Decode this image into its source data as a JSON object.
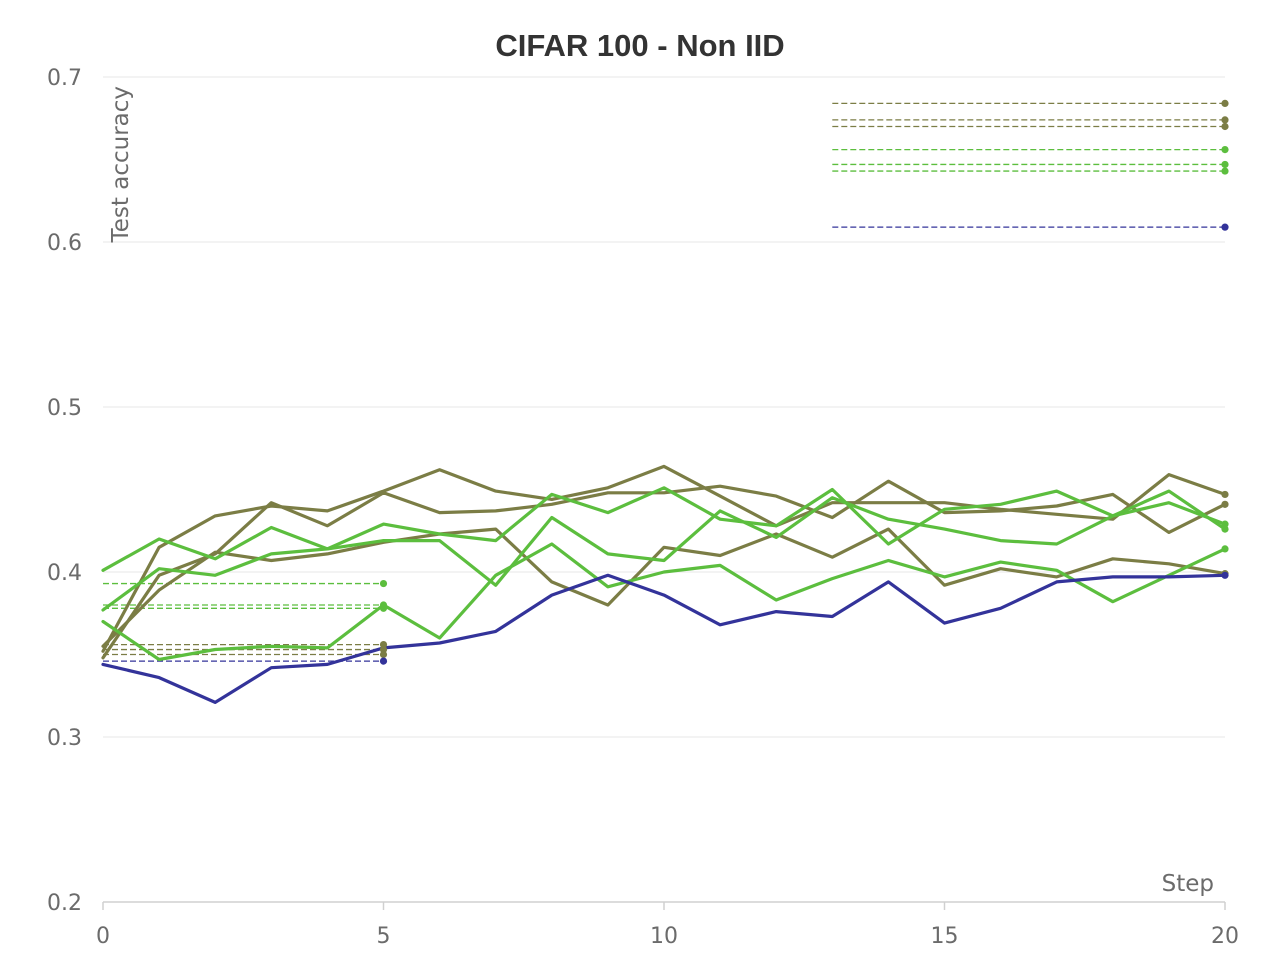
{
  "chart_data": {
    "type": "line",
    "title": "CIFAR 100 - Non IID",
    "xlabel": "Step",
    "ylabel": "Test accuracy",
    "xlim": [
      0,
      20
    ],
    "ylim": [
      0.2,
      0.7
    ],
    "x_ticks": [
      "0",
      "5",
      "10",
      "15",
      "20"
    ],
    "x_tick_values": [
      0,
      5,
      10,
      15,
      20
    ],
    "y_ticks": [
      "0.2",
      "0.3",
      "0.4",
      "0.5",
      "0.6",
      "0.7"
    ],
    "y_tick_values": [
      0.2,
      0.3,
      0.4,
      0.5,
      0.6,
      0.7
    ],
    "grid": true,
    "legend": "none",
    "colors": {
      "olive": "#7b7d45",
      "green": "#5cbe3e",
      "navy": "#33339a",
      "grid": "#ececec",
      "axis": "#d0d0d0"
    },
    "series": [
      {
        "color": "olive",
        "x": [
          0,
          1,
          2,
          3,
          4,
          5,
          6,
          7,
          8,
          9,
          10,
          11,
          12,
          13,
          14,
          15,
          16,
          17,
          18,
          19,
          20
        ],
        "values": [
          0.352,
          0.415,
          0.434,
          0.44,
          0.437,
          0.449,
          0.462,
          0.449,
          0.444,
          0.451,
          0.464,
          0.446,
          0.428,
          0.442,
          0.442,
          0.442,
          0.438,
          0.435,
          0.432,
          0.459,
          0.447
        ]
      },
      {
        "color": "olive",
        "x": [
          0,
          1,
          2,
          3,
          4,
          5,
          6,
          7,
          8,
          9,
          10,
          11,
          12,
          13,
          14,
          15,
          16,
          17,
          18,
          19,
          20
        ],
        "values": [
          0.348,
          0.398,
          0.411,
          0.442,
          0.428,
          0.448,
          0.436,
          0.437,
          0.441,
          0.448,
          0.448,
          0.452,
          0.446,
          0.433,
          0.455,
          0.436,
          0.437,
          0.44,
          0.447,
          0.424,
          0.441
        ]
      },
      {
        "color": "olive",
        "x": [
          0,
          1,
          2,
          3,
          4,
          5,
          6,
          7,
          8,
          9,
          10,
          11,
          12,
          13,
          14,
          15,
          16,
          17,
          18,
          19,
          20
        ],
        "values": [
          0.355,
          0.389,
          0.412,
          0.407,
          0.411,
          0.418,
          0.423,
          0.426,
          0.394,
          0.38,
          0.415,
          0.41,
          0.423,
          0.409,
          0.426,
          0.392,
          0.402,
          0.397,
          0.408,
          0.405,
          0.399
        ]
      },
      {
        "color": "green",
        "x": [
          0,
          1,
          2,
          3,
          4,
          5,
          6,
          7,
          8,
          9,
          10,
          11,
          12,
          13,
          14,
          15,
          16,
          17,
          18,
          19,
          20
        ],
        "values": [
          0.401,
          0.42,
          0.408,
          0.427,
          0.414,
          0.429,
          0.423,
          0.419,
          0.447,
          0.436,
          0.451,
          0.432,
          0.428,
          0.45,
          0.417,
          0.438,
          0.441,
          0.449,
          0.434,
          0.449,
          0.426
        ]
      },
      {
        "color": "green",
        "x": [
          0,
          1,
          2,
          3,
          4,
          5,
          6,
          7,
          8,
          9,
          10,
          11,
          12,
          13,
          14,
          15,
          16,
          17,
          18,
          19,
          20
        ],
        "values": [
          0.377,
          0.402,
          0.398,
          0.411,
          0.414,
          0.419,
          0.419,
          0.392,
          0.433,
          0.411,
          0.407,
          0.437,
          0.421,
          0.445,
          0.432,
          0.426,
          0.419,
          0.417,
          0.434,
          0.442,
          0.429
        ]
      },
      {
        "color": "green",
        "x": [
          0,
          1,
          2,
          3,
          4,
          5,
          6,
          7,
          8,
          9,
          10,
          11,
          12,
          13,
          14,
          15,
          16,
          17,
          18,
          19,
          20
        ],
        "values": [
          0.37,
          0.347,
          0.353,
          0.355,
          0.354,
          0.38,
          0.36,
          0.398,
          0.417,
          0.391,
          0.4,
          0.404,
          0.383,
          0.396,
          0.407,
          0.397,
          0.406,
          0.401,
          0.382,
          0.398,
          0.414
        ]
      },
      {
        "color": "navy",
        "x": [
          0,
          1,
          2,
          3,
          4,
          5,
          6,
          7,
          8,
          9,
          10,
          11,
          12,
          13,
          14,
          15,
          16,
          17,
          18,
          19,
          20
        ],
        "values": [
          0.344,
          0.336,
          0.321,
          0.342,
          0.344,
          0.354,
          0.357,
          0.364,
          0.386,
          0.398,
          0.386,
          0.368,
          0.376,
          0.373,
          0.394,
          0.369,
          0.378,
          0.394,
          0.397,
          0.397,
          0.398
        ]
      }
    ],
    "reference_lines": [
      {
        "color": "olive",
        "x_start": 0,
        "x_end": 5,
        "y": 0.356
      },
      {
        "color": "olive",
        "x_start": 0,
        "x_end": 5,
        "y": 0.353
      },
      {
        "color": "olive",
        "x_start": 0,
        "x_end": 5,
        "y": 0.35
      },
      {
        "color": "green",
        "x_start": 0,
        "x_end": 5,
        "y": 0.393
      },
      {
        "color": "green",
        "x_start": 0,
        "x_end": 5,
        "y": 0.38
      },
      {
        "color": "green",
        "x_start": 0,
        "x_end": 5,
        "y": 0.378
      },
      {
        "color": "navy",
        "x_start": 0,
        "x_end": 5,
        "y": 0.346
      },
      {
        "color": "olive",
        "x_start": 13,
        "x_end": 20,
        "y": 0.684
      },
      {
        "color": "olive",
        "x_start": 13,
        "x_end": 20,
        "y": 0.674
      },
      {
        "color": "olive",
        "x_start": 13,
        "x_end": 20,
        "y": 0.67
      },
      {
        "color": "green",
        "x_start": 13,
        "x_end": 20,
        "y": 0.656
      },
      {
        "color": "green",
        "x_start": 13,
        "x_end": 20,
        "y": 0.647
      },
      {
        "color": "green",
        "x_start": 13,
        "x_end": 20,
        "y": 0.643
      },
      {
        "color": "navy",
        "x_start": 13,
        "x_end": 20,
        "y": 0.609
      }
    ]
  }
}
